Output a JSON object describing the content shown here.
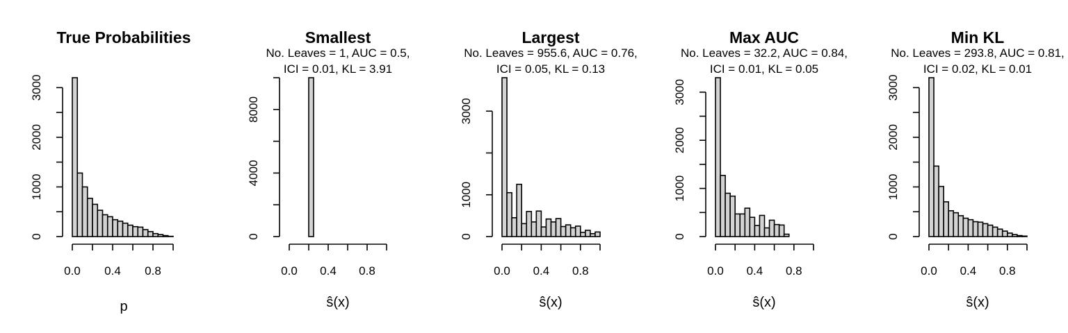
{
  "chart_data": [
    {
      "type": "bar",
      "title": "True Probabilities",
      "subtitle_lines": [],
      "xlabel": "p",
      "ylabel": "",
      "bin_width": 0.05,
      "bin_starts": [
        0.0,
        0.05,
        0.1,
        0.15,
        0.2,
        0.25,
        0.3,
        0.35,
        0.4,
        0.45,
        0.5,
        0.55,
        0.6,
        0.65,
        0.7,
        0.75,
        0.8,
        0.85,
        0.9,
        0.95
      ],
      "values": [
        3200,
        1280,
        1000,
        770,
        650,
        530,
        440,
        400,
        340,
        310,
        270,
        230,
        200,
        190,
        140,
        100,
        60,
        40,
        20,
        5
      ],
      "xlim": [
        0,
        1
      ],
      "xticks": [
        "0.0",
        "0.4",
        "0.8"
      ],
      "xtick_values": [
        0,
        0.4,
        0.8
      ],
      "ylim": [
        0,
        3200
      ],
      "yticks": [
        "0",
        "1000",
        "2000",
        "3000"
      ],
      "ytick_values": [
        0,
        1000,
        2000,
        3000
      ],
      "yminor_ticks": [
        500,
        1500,
        2500
      ]
    },
    {
      "type": "bar",
      "title": "Smallest",
      "subtitle_lines": [
        "No. Leaves = 1, AUC = 0.5,",
        "ICI = 0.01, KL = 3.91"
      ],
      "xlabel": "ŝ(x)",
      "ylabel": "",
      "bin_width": 0.05,
      "bin_starts": [
        0.0,
        0.05,
        0.1,
        0.15,
        0.2,
        0.25,
        0.3,
        0.35,
        0.4,
        0.45,
        0.5,
        0.55,
        0.6,
        0.65,
        0.7,
        0.75,
        0.8,
        0.85,
        0.9,
        0.95
      ],
      "values": [
        0,
        0,
        0,
        0,
        10000,
        0,
        0,
        0,
        0,
        0,
        0,
        0,
        0,
        0,
        0,
        0,
        0,
        0,
        0,
        0
      ],
      "xlim": [
        0,
        1
      ],
      "xticks": [
        "0.0",
        "0.4",
        "0.8"
      ],
      "xtick_values": [
        0,
        0.4,
        0.8
      ],
      "ylim": [
        0,
        10000
      ],
      "yticks": [
        "0",
        "4000",
        "8000"
      ],
      "ytick_values": [
        0,
        4000,
        8000
      ],
      "yminor_ticks": [
        2000,
        6000,
        10000
      ]
    },
    {
      "type": "bar",
      "title": "Largest",
      "subtitle_lines": [
        "No. Leaves = 955.6, AUC = 0.76,",
        "ICI = 0.05, KL = 0.13"
      ],
      "xlabel": "ŝ(x)",
      "ylabel": "",
      "bin_width": 0.05,
      "bin_starts": [
        0.0,
        0.05,
        0.1,
        0.15,
        0.2,
        0.25,
        0.3,
        0.35,
        0.4,
        0.45,
        0.5,
        0.55,
        0.6,
        0.65,
        0.7,
        0.75,
        0.8,
        0.85,
        0.9,
        0.95
      ],
      "values": [
        3800,
        1050,
        450,
        1250,
        310,
        600,
        350,
        610,
        230,
        420,
        350,
        430,
        240,
        280,
        210,
        250,
        100,
        150,
        70,
        110
      ],
      "xlim": [
        0,
        1
      ],
      "xticks": [
        "0.0",
        "0.4",
        "0.8"
      ],
      "xtick_values": [
        0,
        0.4,
        0.8
      ],
      "ylim": [
        0,
        3800
      ],
      "yticks": [
        "0",
        "1000",
        "3000"
      ],
      "ytick_values": [
        0,
        1000,
        3000
      ],
      "yminor_ticks": [
        2000
      ]
    },
    {
      "type": "bar",
      "title": "Max AUC",
      "subtitle_lines": [
        "No. Leaves = 32.2, AUC = 0.84,",
        "ICI = 0.01, KL = 0.05"
      ],
      "xlabel": "ŝ(x)",
      "ylabel": "",
      "bin_width": 0.05,
      "bin_starts": [
        0.0,
        0.05,
        0.1,
        0.15,
        0.2,
        0.25,
        0.3,
        0.35,
        0.4,
        0.45,
        0.5,
        0.55,
        0.6,
        0.65,
        0.7,
        0.75,
        0.8,
        0.85,
        0.9,
        0.95
      ],
      "values": [
        3300,
        1270,
        900,
        840,
        470,
        470,
        590,
        400,
        230,
        440,
        180,
        340,
        250,
        240,
        50,
        0,
        0,
        0,
        0,
        0
      ],
      "xlim": [
        0,
        1
      ],
      "xticks": [
        "0.0",
        "0.4",
        "0.8"
      ],
      "xtick_values": [
        0,
        0.4,
        0.8
      ],
      "ylim": [
        0,
        3300
      ],
      "yticks": [
        "0",
        "1000",
        "2000",
        "3000"
      ],
      "ytick_values": [
        0,
        1000,
        2000,
        3000
      ],
      "yminor_ticks": [
        500,
        1500,
        2500
      ]
    },
    {
      "type": "bar",
      "title": "Min KL",
      "subtitle_lines": [
        "No. Leaves = 293.8, AUC = 0.81,",
        "ICI = 0.02, KL = 0.01"
      ],
      "xlabel": "ŝ(x)",
      "ylabel": "",
      "bin_width": 0.05,
      "bin_starts": [
        0.0,
        0.05,
        0.1,
        0.15,
        0.2,
        0.25,
        0.3,
        0.35,
        0.4,
        0.45,
        0.5,
        0.55,
        0.6,
        0.65,
        0.7,
        0.75,
        0.8,
        0.85,
        0.9,
        0.95
      ],
      "values": [
        3200,
        1420,
        1010,
        700,
        520,
        480,
        420,
        370,
        340,
        300,
        290,
        260,
        230,
        190,
        150,
        110,
        70,
        40,
        20,
        10
      ],
      "xlim": [
        0,
        1
      ],
      "xticks": [
        "0.0",
        "0.4",
        "0.8"
      ],
      "xtick_values": [
        0,
        0.4,
        0.8
      ],
      "ylim": [
        0,
        3200
      ],
      "yticks": [
        "0",
        "1000",
        "2000",
        "3000"
      ],
      "ytick_values": [
        0,
        1000,
        2000,
        3000
      ],
      "yminor_ticks": [
        500,
        1500,
        2500
      ]
    }
  ]
}
